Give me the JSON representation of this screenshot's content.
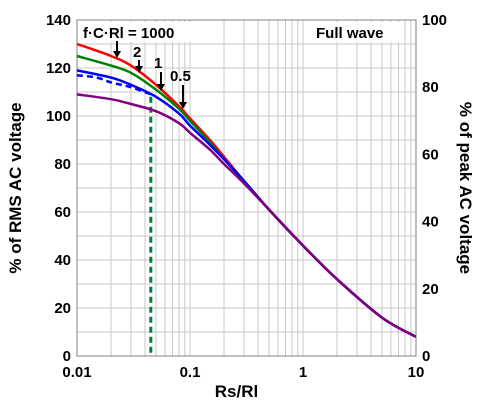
{
  "chart_data": {
    "type": "line",
    "title": "",
    "x_scale": "log",
    "xlabel": "Rs/Rl",
    "ylabel_left": "% of RMS AC voltage",
    "ylabel_right": "% of peak AC voltage",
    "xlim": [
      0.01,
      10
    ],
    "ylim_left": [
      0,
      140
    ],
    "ylim_right": [
      0,
      100
    ],
    "x_tick_labels": [
      "0.01",
      "0.1",
      "1",
      "10"
    ],
    "y_left_ticks": [
      "0",
      "20",
      "40",
      "60",
      "80",
      "100",
      "120",
      "140"
    ],
    "y_right_ticks": [
      "0",
      "20",
      "40",
      "60",
      "80",
      "100"
    ],
    "grid": true,
    "annotations": {
      "fcrl": "f·C·Rl = 1000",
      "label_2": "2",
      "label_1": "1",
      "label_05": "0.5",
      "mode": "Full wave"
    },
    "marker_line": {
      "x": 0.045,
      "color": "#008040",
      "style": "dashed"
    },
    "series": [
      {
        "color": "#ff0000",
        "x": [
          0.01,
          0.02,
          0.03,
          0.05,
          0.08,
          0.1,
          0.15,
          0.2,
          0.3,
          0.5,
          1,
          2,
          5,
          10
        ],
        "y": [
          130,
          125,
          121,
          113,
          104,
          99,
          90,
          83,
          73,
          61,
          46,
          32,
          16,
          8
        ]
      },
      {
        "color": "#008000",
        "x": [
          0.01,
          0.02,
          0.03,
          0.05,
          0.08,
          0.1,
          0.15,
          0.2,
          0.3,
          0.5,
          1,
          2,
          5,
          10
        ],
        "y": [
          125,
          121,
          118,
          111,
          103,
          98,
          89,
          82,
          73,
          61,
          46,
          32,
          16,
          8
        ]
      },
      {
        "color": "#0000ff",
        "x": [
          0.01,
          0.02,
          0.03,
          0.05,
          0.08,
          0.1,
          0.15,
          0.2,
          0.3,
          0.5,
          1,
          2,
          5,
          10
        ],
        "y": [
          119,
          116,
          113,
          108,
          101,
          96,
          88,
          82,
          73,
          61,
          46,
          32,
          16,
          8
        ]
      },
      {
        "color": "#0000ff",
        "dashed": true,
        "x": [
          0.01,
          0.015,
          0.02,
          0.03,
          0.045
        ],
        "y": [
          117,
          116,
          114,
          112,
          109
        ]
      },
      {
        "color": "#800080",
        "x": [
          0.01,
          0.02,
          0.03,
          0.05,
          0.08,
          0.1,
          0.15,
          0.2,
          0.3,
          0.5,
          1,
          2,
          5,
          10
        ],
        "y": [
          109,
          107,
          105,
          102,
          97,
          93,
          86,
          80,
          72,
          61,
          46,
          32,
          16,
          8
        ]
      }
    ]
  }
}
